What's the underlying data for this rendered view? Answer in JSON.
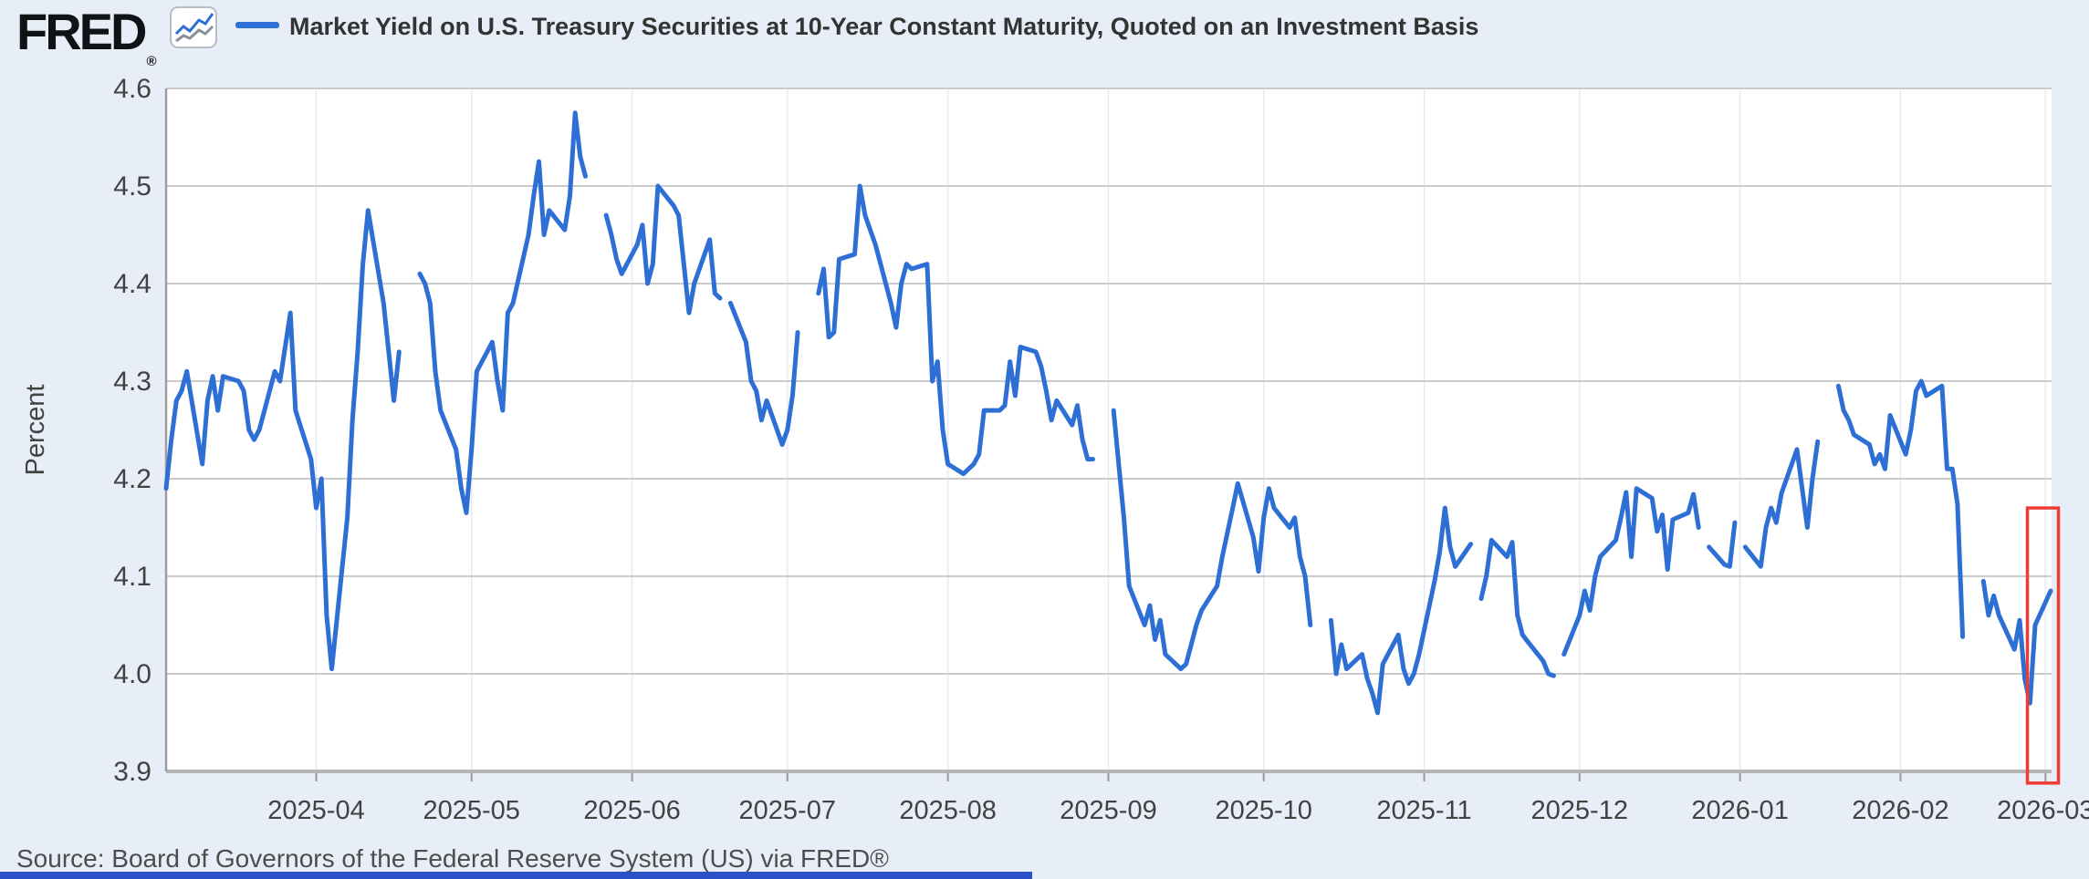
{
  "header": {
    "logo_text": "FRED",
    "registered_mark": "®",
    "legend_label": "Market Yield on U.S. Treasury Securities at 10-Year Constant Maturity, Quoted on an Investment Basis"
  },
  "footer": {
    "source_text": "Source: Board of Governors of the Federal Reserve System (US) via FRED®"
  },
  "colors": {
    "background": "#e8eef7",
    "plot_background": "#ffffff",
    "line": "#2d6fd4",
    "grid": "#cbcbcb",
    "month_grid": "#e4e9f3",
    "axis_bottom": "#b3b3b3",
    "axis_left": "#9c9c9c",
    "tick": "#999999",
    "axis_text": "#424242",
    "title_text": "#333333",
    "highlight_box": "#ee3b33",
    "bottom_bar": "#2a52c6",
    "badge_line_gray": "#8a9097"
  },
  "chart_data": {
    "type": "line",
    "title": "Market Yield on U.S. Treasury Securities at 10-Year Constant Maturity, Quoted on an Investment Basis",
    "xlabel": "",
    "ylabel": "Percent",
    "ylim": [
      3.9,
      4.6
    ],
    "yticks": [
      "4.6",
      "4.5",
      "4.4",
      "4.3",
      "4.2",
      "4.1",
      "4.0",
      "3.9"
    ],
    "ytick_values": [
      4.6,
      4.5,
      4.4,
      4.3,
      4.2,
      4.1,
      4.0,
      3.9
    ],
    "xtick_labels": [
      "2025-04",
      "2025-05",
      "2025-06",
      "2025-07",
      "2025-08",
      "2025-09",
      "2025-10",
      "2025-11",
      "2025-12",
      "2026-01",
      "2026-02",
      "2026-03"
    ],
    "grid": "horizontal-major",
    "legend_position": "top-left",
    "series": [
      {
        "name": "Market Yield on U.S. Treasury Securities at 10-Year Constant Maturity, Quoted on an Investment Basis",
        "color": "#2d6fd4",
        "frequency": "business-daily",
        "start_date": "2025-03-03",
        "end_date": "2026-03-02",
        "note": "null entries are U.S. market holidays shown as line breaks",
        "values": [
          4.19,
          4.24,
          4.28,
          4.29,
          4.31,
          4.215,
          4.28,
          4.305,
          4.27,
          4.305,
          4.3,
          4.29,
          4.25,
          4.24,
          4.25,
          4.31,
          4.3,
          4.335,
          4.37,
          4.27,
          4.22,
          4.17,
          4.2,
          4.06,
          4.005,
          4.16,
          4.26,
          4.33,
          4.42,
          4.475,
          4.38,
          4.33,
          4.28,
          4.33,
          null,
          4.41,
          4.4,
          4.38,
          4.31,
          4.27,
          4.23,
          4.19,
          4.165,
          4.23,
          4.31,
          4.34,
          4.3,
          4.27,
          4.37,
          4.38,
          4.45,
          4.49,
          4.525,
          4.45,
          4.475,
          4.455,
          4.49,
          4.575,
          4.53,
          4.51,
          null,
          4.47,
          4.45,
          4.425,
          4.41,
          4.44,
          4.46,
          4.4,
          4.42,
          4.5,
          4.48,
          4.47,
          4.42,
          4.37,
          4.4,
          4.445,
          4.39,
          4.385,
          null,
          4.38,
          4.34,
          4.3,
          4.29,
          4.26,
          4.28,
          4.235,
          4.25,
          4.285,
          4.35,
          null,
          4.39,
          4.415,
          4.345,
          4.35,
          4.425,
          4.43,
          4.5,
          4.47,
          4.455,
          4.44,
          4.38,
          4.355,
          4.4,
          4.42,
          4.415,
          4.42,
          4.3,
          4.32,
          4.25,
          4.215,
          4.205,
          4.21,
          4.215,
          4.225,
          4.27,
          4.27,
          4.275,
          4.32,
          4.285,
          4.335,
          4.33,
          4.315,
          4.29,
          4.26,
          4.28,
          4.255,
          4.275,
          4.24,
          4.22,
          4.22,
          null,
          4.27,
          4.215,
          4.16,
          4.09,
          4.05,
          4.07,
          4.035,
          4.055,
          4.02,
          4.005,
          4.01,
          4.03,
          4.05,
          4.065,
          4.09,
          4.12,
          4.145,
          4.17,
          4.195,
          4.14,
          4.105,
          4.16,
          4.19,
          4.17,
          4.15,
          4.16,
          4.12,
          4.1,
          4.05,
          null,
          4.055,
          4.0,
          4.03,
          4.005,
          4.02,
          3.995,
          3.98,
          3.96,
          4.01,
          4.04,
          4.005,
          3.99,
          4.0,
          4.02,
          4.095,
          4.125,
          4.17,
          4.13,
          4.11,
          4.133,
          null,
          4.077,
          4.1,
          4.137,
          4.12,
          4.135,
          4.06,
          4.04,
          4.033,
          4.013,
          4.0,
          3.998,
          null,
          4.02,
          4.06,
          4.085,
          4.065,
          4.1,
          4.12,
          4.137,
          4.16,
          4.186,
          4.12,
          4.19,
          4.18,
          4.146,
          4.163,
          4.107,
          4.158,
          4.165,
          4.184,
          4.15,
          null,
          4.13,
          4.112,
          4.11,
          4.155,
          null,
          4.13,
          4.11,
          4.15,
          4.17,
          4.155,
          4.185,
          4.23,
          4.19,
          4.15,
          4.2,
          4.238,
          null,
          4.295,
          4.27,
          4.26,
          4.245,
          4.235,
          4.215,
          4.225,
          4.21,
          4.265,
          4.225,
          4.25,
          4.29,
          4.3,
          4.285,
          4.295,
          4.21,
          4.21,
          4.174,
          4.038,
          null,
          4.095,
          4.06,
          4.08,
          4.06,
          4.025,
          4.055,
          3.995,
          3.97,
          4.05,
          4.085
        ]
      }
    ],
    "annotation": {
      "type": "highlight-box",
      "color": "#ee3b33",
      "date_from": "2026-02-25T12:00:00Z",
      "date_to": "2026-03-03T12:00:00Z",
      "value_from": 3.888,
      "value_to": 4.17
    }
  }
}
